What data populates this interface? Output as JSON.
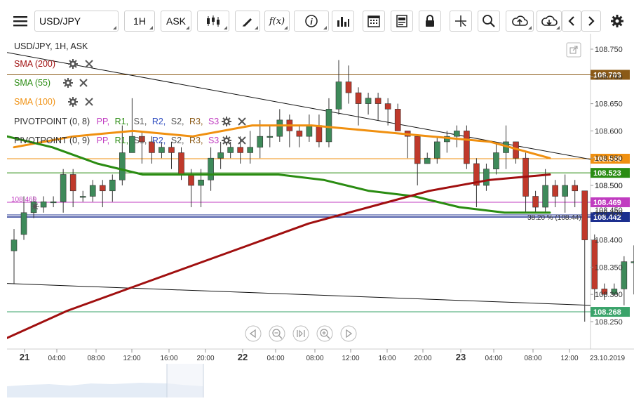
{
  "toolbar": {
    "symbol": "USD/JPY",
    "timeframe": "1H",
    "price_type": "ASK",
    "icons": [
      "menu-icon",
      "candlestick-type-icon",
      "draw-pencil-icon",
      "fx-indicators-icon",
      "info-icon",
      "volume-bars-icon",
      "calendar-icon",
      "news-icon",
      "lock-icon",
      "crosshair-icon",
      "zoom-icon",
      "cloud-upload-icon",
      "cloud-download-icon",
      "chevron-left-icon",
      "chevron-right-icon",
      "gear-icon"
    ],
    "fx_label": "f(x)"
  },
  "legend": {
    "instrument": "USD/JPY, 1H, ASK",
    "sma200": "SMA (200)",
    "sma55": "SMA (55)",
    "sma100": "SMA (100)",
    "pivot1_name": "PIVOTPOINT (0, 8)",
    "pivot2_name": "PIVOTPOINT (0, 9)",
    "pivot_levels": [
      "PP,",
      "R1,",
      "S1,",
      "R2,",
      "S2,",
      "R3,",
      "S3"
    ],
    "colors": {
      "sma200": "#a00f0f",
      "sma55": "#2a8c12",
      "sma100": "#f09010",
      "pp": "#c03cc0",
      "r": "#2a8c12",
      "s": "#555555",
      "r2": "#2e4cc0",
      "s3": "#c03cc0"
    }
  },
  "chart_data": {
    "type": "candlestick",
    "instrument": "USD/JPY",
    "timeframe": "1H",
    "ylim": [
      108.225,
      108.78
    ],
    "y_ticks": [
      "108.750",
      "108.700",
      "108.650",
      "108.600",
      "108.550",
      "108.500",
      "108.450",
      "108.400",
      "108.350",
      "108.300",
      "108.250"
    ],
    "x_ticks": [
      "21",
      "04:00",
      "08:00",
      "12:00",
      "16:00",
      "20:00",
      "22",
      "04:00",
      "08:00",
      "12:00",
      "16:00",
      "20:00",
      "23",
      "04:00",
      "08:00",
      "12:00",
      "23.10.2019"
    ],
    "x_tick_bold": [
      "21",
      "22",
      "23"
    ],
    "candles": [
      [
        108.38,
        108.4,
        108.32,
        108.42
      ],
      [
        108.41,
        108.45,
        108.4,
        108.48
      ],
      [
        108.45,
        108.47,
        108.44,
        108.48
      ],
      [
        108.46,
        108.47,
        108.45,
        108.48
      ],
      [
        108.47,
        108.47,
        108.46,
        108.48
      ],
      [
        108.47,
        108.52,
        108.45,
        108.53
      ],
      [
        108.52,
        108.49,
        108.46,
        108.53
      ],
      [
        108.48,
        108.48,
        108.47,
        108.49
      ],
      [
        108.48,
        108.5,
        108.47,
        108.51
      ],
      [
        108.5,
        108.49,
        108.46,
        108.51
      ],
      [
        108.49,
        108.51,
        108.47,
        108.52
      ],
      [
        108.51,
        108.56,
        108.5,
        108.61
      ],
      [
        108.56,
        108.59,
        108.56,
        108.66
      ],
      [
        108.59,
        108.58,
        108.54,
        108.6
      ],
      [
        108.58,
        108.56,
        108.54,
        108.59
      ],
      [
        108.56,
        108.57,
        108.55,
        108.58
      ],
      [
        108.57,
        108.56,
        108.53,
        108.58
      ],
      [
        108.56,
        108.52,
        108.51,
        108.57
      ],
      [
        108.52,
        108.5,
        108.46,
        108.53
      ],
      [
        108.5,
        108.51,
        108.46,
        108.53
      ],
      [
        108.51,
        108.55,
        108.49,
        108.57
      ],
      [
        108.55,
        108.56,
        108.53,
        108.58
      ],
      [
        108.56,
        108.57,
        108.55,
        108.58
      ],
      [
        108.57,
        108.56,
        108.54,
        108.59
      ],
      [
        108.56,
        108.57,
        108.54,
        108.6
      ],
      [
        108.57,
        108.59,
        108.55,
        108.62
      ],
      [
        108.59,
        108.59,
        108.57,
        108.61
      ],
      [
        108.59,
        108.62,
        108.58,
        108.64
      ],
      [
        108.62,
        108.6,
        108.57,
        108.63
      ],
      [
        108.6,
        108.59,
        108.57,
        108.61
      ],
      [
        108.59,
        108.61,
        108.58,
        108.63
      ],
      [
        108.61,
        108.58,
        108.57,
        108.63
      ],
      [
        108.58,
        108.64,
        108.57,
        108.66
      ],
      [
        108.64,
        108.69,
        108.63,
        108.73
      ],
      [
        108.69,
        108.67,
        108.65,
        108.72
      ],
      [
        108.67,
        108.65,
        108.61,
        108.68
      ],
      [
        108.65,
        108.66,
        108.63,
        108.67
      ],
      [
        108.66,
        108.65,
        108.62,
        108.67
      ],
      [
        108.65,
        108.64,
        108.61,
        108.66
      ],
      [
        108.64,
        108.6,
        108.6,
        108.65
      ],
      [
        108.6,
        108.59,
        108.55,
        108.6
      ],
      [
        108.59,
        108.54,
        108.5,
        108.59
      ],
      [
        108.54,
        108.55,
        108.54,
        108.56
      ],
      [
        108.55,
        108.58,
        108.54,
        108.59
      ],
      [
        108.58,
        108.59,
        108.56,
        108.6
      ],
      [
        108.59,
        108.6,
        108.57,
        108.61
      ],
      [
        108.6,
        108.54,
        108.53,
        108.61
      ],
      [
        108.54,
        108.5,
        108.46,
        108.55
      ],
      [
        108.5,
        108.53,
        108.49,
        108.54
      ],
      [
        108.53,
        108.56,
        108.52,
        108.58
      ],
      [
        108.56,
        108.58,
        108.53,
        108.61
      ],
      [
        108.58,
        108.55,
        108.54,
        108.58
      ],
      [
        108.55,
        108.48,
        108.45,
        108.56
      ],
      [
        108.48,
        108.46,
        108.45,
        108.49
      ],
      [
        108.46,
        108.5,
        108.45,
        108.53
      ],
      [
        108.5,
        108.48,
        108.46,
        108.51
      ],
      [
        108.48,
        108.5,
        108.45,
        108.52
      ],
      [
        108.5,
        108.49,
        108.46,
        108.51
      ],
      [
        108.49,
        108.4,
        108.25,
        108.49
      ],
      [
        108.4,
        108.31,
        108.29,
        108.41
      ],
      [
        108.31,
        108.3,
        108.29,
        108.32
      ],
      [
        108.3,
        108.31,
        108.3,
        108.32
      ],
      [
        108.31,
        108.36,
        108.28,
        108.37
      ],
      [
        108.36,
        108.36,
        108.3,
        108.39
      ],
      [
        108.36,
        108.32,
        108.31,
        108.37
      ],
      [
        108.32,
        108.37,
        108.32,
        108.43
      ],
      [
        108.37,
        108.38,
        108.33,
        108.41
      ],
      [
        108.38,
        108.38,
        108.36,
        108.39
      ],
      [
        108.38,
        108.46,
        108.38,
        108.47
      ]
    ],
    "sma200": [
      108.22,
      108.27,
      108.31,
      108.35,
      108.39,
      108.43,
      108.46,
      108.49,
      108.51,
      108.52
    ],
    "sma55": [
      108.59,
      108.57,
      108.54,
      108.52,
      108.52,
      108.52,
      108.52,
      108.51,
      108.49,
      108.48,
      108.46,
      108.45,
      108.45
    ],
    "sma100": [
      108.57,
      108.59,
      108.6,
      108.59,
      108.61,
      108.61,
      108.6,
      108.59,
      108.58,
      108.55
    ],
    "horizontal_levels": [
      {
        "price": 108.703,
        "label": "108.703",
        "color": "#8b5a17"
      },
      {
        "price": 108.549,
        "label": "108.549",
        "color": "#f09010"
      },
      {
        "price": 108.523,
        "label": "108.523",
        "color": "#2a8c12"
      },
      {
        "price": 108.469,
        "label": "108.469",
        "color": "#c03cc0"
      },
      {
        "price": 108.442,
        "label": "108.442",
        "color": "#1c2f8f"
      },
      {
        "price": 108.268,
        "label": "108.268",
        "color": "#3aa36a"
      }
    ],
    "axis_right_extra": [
      "108.500",
      "108.450"
    ],
    "fib_label": "38.20 % (108.44)",
    "left_price_label": "108.469",
    "trendline_upper": [
      108.74,
      108.58
    ],
    "trendline_lower": [
      108.32,
      108.28
    ],
    "candle_colors": {
      "up": "#3e8a5a",
      "down": "#c0392b"
    }
  },
  "nav_controls": [
    "scroll-left-icon",
    "zoom-out-icon",
    "reset-zoom-icon",
    "zoom-in-icon",
    "scroll-right-icon"
  ]
}
